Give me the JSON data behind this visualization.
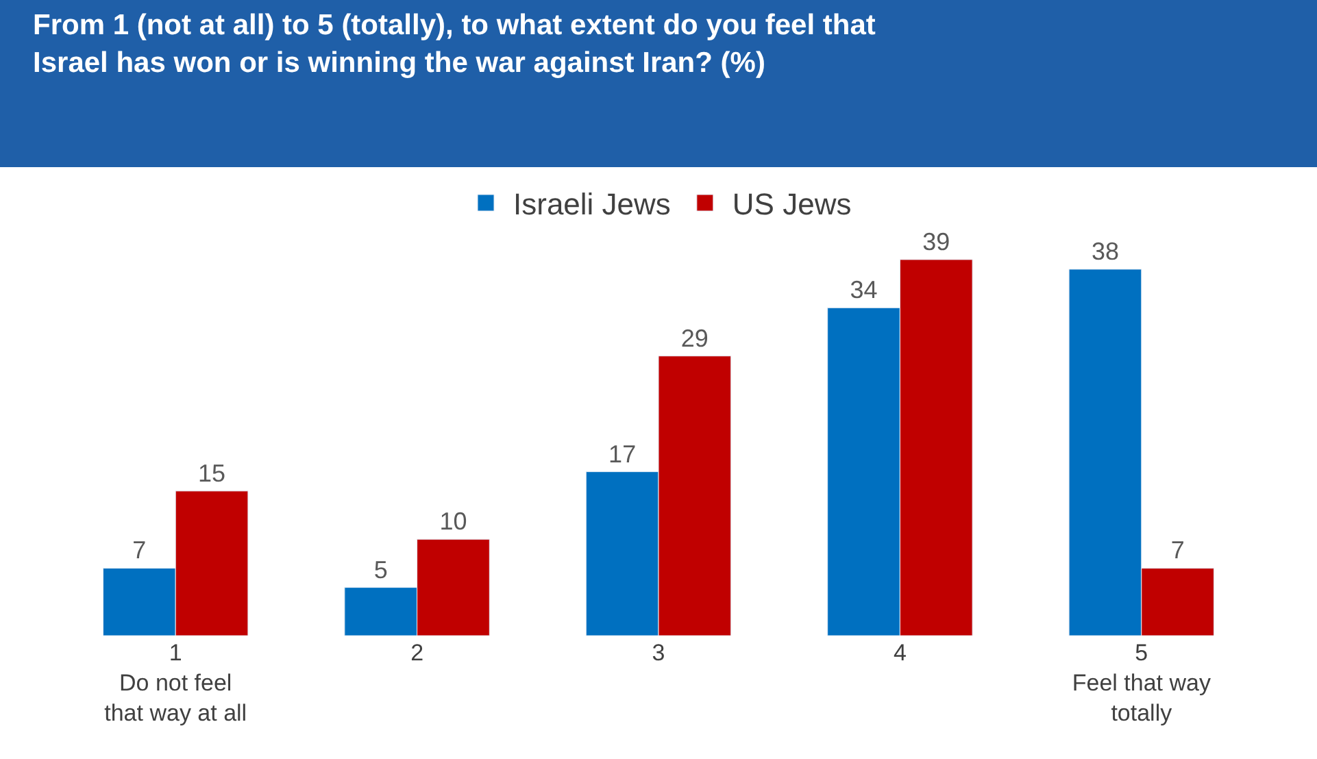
{
  "chart_data": {
    "type": "bar",
    "title": "From 1 (not at all) to 5 (totally), to what extent do you feel that Israel has won or is winning the war against Iran? (%)",
    "categories": [
      "1\nDo not feel\nthat way at all",
      "2",
      "3",
      "4",
      "5\nFeel that way\ntotally"
    ],
    "series": [
      {
        "name": "Israeli Jews",
        "color": "#0070c0",
        "values": [
          7,
          5,
          17,
          34,
          38
        ]
      },
      {
        "name": "US Jews",
        "color": "#c00000",
        "values": [
          15,
          10,
          29,
          39,
          7
        ]
      }
    ],
    "data_labels": true,
    "legend": "top"
  }
}
